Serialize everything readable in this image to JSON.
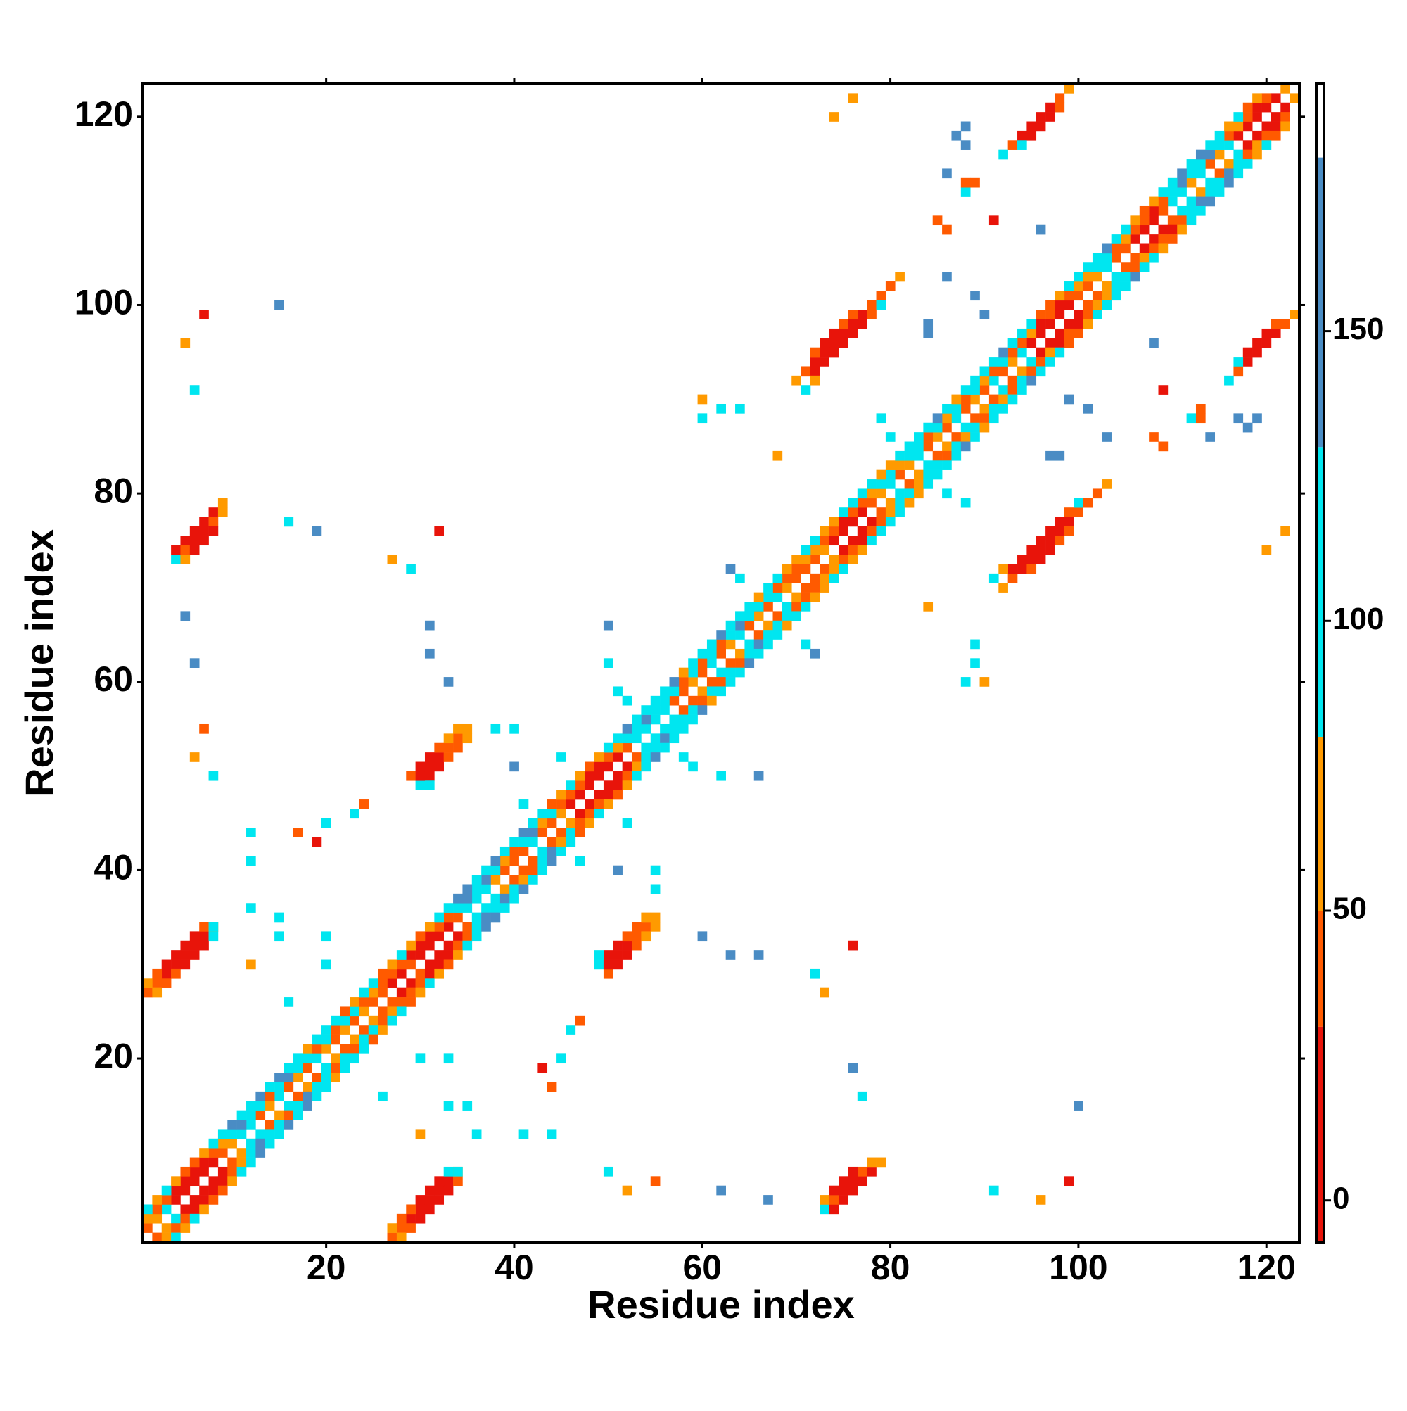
{
  "chart_data": {
    "type": "heatmap",
    "symmetric": true,
    "x_label": "Residue index",
    "y_label": "Residue index",
    "xlim": [
      0.5,
      123.5
    ],
    "ylim": [
      0.5,
      123.5
    ],
    "xticks": [
      20,
      40,
      60,
      80,
      100,
      120
    ],
    "yticks": [
      20,
      40,
      60,
      80,
      100,
      120
    ],
    "clim": [
      -7.2,
      192.7
    ],
    "cticks": [
      0,
      50,
      100,
      150
    ],
    "colorscale": [
      {
        "from": -7.2,
        "to": 30,
        "color": "#e8140a"
      },
      {
        "from": 30,
        "to": 50,
        "color": "#ff5a00"
      },
      {
        "from": 50,
        "to": 80,
        "color": "#ff9a00"
      },
      {
        "from": 80,
        "to": 130,
        "color": "#00e6f0"
      },
      {
        "from": 130,
        "to": 180,
        "color": "#4a8cc4"
      },
      {
        "from": 180,
        "to": 192.7,
        "color": "#ffffff"
      }
    ],
    "bands": [
      {
        "offset": 1,
        "from": 1,
        "values": [
          35,
          65,
          100,
          5,
          5,
          5,
          5,
          5,
          35,
          65,
          100,
          100,
          35,
          65,
          100,
          35,
          65,
          35,
          100,
          65,
          35,
          65,
          35,
          65,
          35,
          35,
          5,
          5,
          35,
          5,
          5,
          5,
          5,
          35,
          100,
          100,
          100,
          65,
          35,
          35,
          35,
          100,
          35,
          35,
          65,
          5,
          5,
          5,
          5,
          5,
          5,
          35,
          100,
          100,
          100,
          100,
          35,
          35,
          65,
          35,
          100,
          35,
          65,
          100,
          35,
          65,
          35,
          100,
          65,
          35,
          35,
          35,
          65,
          5,
          5,
          5,
          5,
          35,
          65,
          100,
          35,
          65,
          100,
          35,
          65,
          35,
          100,
          35,
          65,
          35,
          100,
          35,
          65,
          100,
          5,
          5,
          5,
          5,
          5,
          35,
          35,
          65,
          100,
          35,
          35,
          5,
          5,
          5,
          35,
          100,
          100,
          65,
          100,
          35,
          65,
          100,
          5,
          5,
          5,
          5,
          5,
          65
        ]
      },
      {
        "offset": 2,
        "from": 1,
        "values": [
          65,
          35,
          35,
          5,
          5,
          5,
          5,
          35,
          65,
          100,
          150,
          100,
          100,
          35,
          100,
          150,
          100,
          100,
          35,
          100,
          35,
          100,
          100,
          35,
          65,
          35,
          35,
          35,
          5,
          5,
          5,
          35,
          35,
          100,
          150,
          100,
          150,
          100,
          65,
          35,
          100,
          150,
          65,
          100,
          35,
          35,
          35,
          5,
          5,
          35,
          65,
          100,
          100,
          150,
          100,
          100,
          100,
          35,
          100,
          35,
          100,
          35,
          100,
          150,
          100,
          35,
          100,
          35,
          35,
          35,
          65,
          65,
          35,
          35,
          5,
          35,
          35,
          65,
          100,
          100,
          65,
          100,
          100,
          35,
          100,
          65,
          100,
          35,
          100,
          65,
          35,
          100,
          35,
          35,
          65,
          5,
          35,
          5,
          35,
          65,
          65,
          100,
          100,
          35,
          65,
          35,
          35,
          5,
          35,
          100,
          150,
          100,
          100,
          150,
          100,
          35,
          65,
          35,
          5,
          35
        ]
      },
      {
        "offset": 3,
        "from": 1,
        "values": [
          100,
          65,
          100,
          65,
          35,
          35,
          65,
          100,
          100,
          150,
          100,
          100,
          150,
          100,
          150,
          100,
          100,
          65,
          100,
          100,
          100,
          35,
          65,
          100,
          100,
          35,
          65,
          100,
          65,
          35,
          65,
          100,
          100,
          150,
          150,
          100,
          100,
          150,
          100,
          100,
          150,
          100,
          100,
          35,
          65,
          100,
          65,
          35,
          65,
          100,
          100,
          150,
          100,
          100,
          100,
          100,
          150,
          65,
          100,
          100,
          100,
          150,
          100,
          100,
          100,
          65,
          100,
          100,
          65,
          65,
          100,
          100,
          65,
          65,
          100,
          100,
          100,
          100,
          65,
          65,
          100,
          100,
          100,
          100,
          150,
          100,
          65,
          100,
          100,
          100,
          100,
          150,
          100,
          100,
          100,
          35,
          35,
          65,
          100,
          100,
          100,
          100,
          150,
          100,
          100,
          65,
          35,
          65,
          100,
          100,
          150,
          100,
          150,
          100,
          100,
          65,
          100,
          35,
          65
        ]
      }
    ],
    "cells": [
      [
        27,
        1,
        35
      ],
      [
        28,
        2,
        35
      ],
      [
        29,
        3,
        5
      ],
      [
        30,
        4,
        5
      ],
      [
        31,
        5,
        5
      ],
      [
        32,
        6,
        5
      ],
      [
        33,
        7,
        5
      ],
      [
        28,
        1,
        65
      ],
      [
        29,
        2,
        35
      ],
      [
        30,
        3,
        5
      ],
      [
        31,
        4,
        5
      ],
      [
        32,
        5,
        5
      ],
      [
        33,
        6,
        5
      ],
      [
        34,
        7,
        35
      ],
      [
        27,
        2,
        65
      ],
      [
        28,
        3,
        35
      ],
      [
        29,
        4,
        35
      ],
      [
        30,
        5,
        5
      ],
      [
        31,
        6,
        5
      ],
      [
        32,
        7,
        5
      ],
      [
        33,
        8,
        100
      ],
      [
        34,
        8,
        65
      ],
      [
        73,
        4,
        100
      ],
      [
        74,
        4,
        5
      ],
      [
        75,
        5,
        5
      ],
      [
        76,
        6,
        5
      ],
      [
        77,
        7,
        5
      ],
      [
        78,
        8,
        5
      ],
      [
        74,
        5,
        35
      ],
      [
        75,
        6,
        5
      ],
      [
        76,
        7,
        5
      ],
      [
        77,
        8,
        35
      ],
      [
        78,
        9,
        65
      ],
      [
        73,
        5,
        65
      ],
      [
        74,
        6,
        5
      ],
      [
        75,
        7,
        5
      ],
      [
        76,
        8,
        5
      ],
      [
        79,
        9,
        65
      ],
      [
        49,
        30,
        100
      ],
      [
        50,
        29,
        35
      ],
      [
        50,
        30,
        5
      ],
      [
        51,
        31,
        5
      ],
      [
        52,
        32,
        5
      ],
      [
        53,
        33,
        35
      ],
      [
        54,
        34,
        35
      ],
      [
        55,
        35,
        65
      ],
      [
        50,
        31,
        5
      ],
      [
        51,
        32,
        5
      ],
      [
        52,
        33,
        35
      ],
      [
        53,
        34,
        35
      ],
      [
        54,
        35,
        65
      ],
      [
        49,
        31,
        100
      ],
      [
        51,
        30,
        5
      ],
      [
        52,
        31,
        5
      ],
      [
        53,
        32,
        35
      ],
      [
        54,
        33,
        65
      ],
      [
        55,
        34,
        65
      ],
      [
        92,
        70,
        65
      ],
      [
        93,
        71,
        35
      ],
      [
        94,
        72,
        5
      ],
      [
        95,
        73,
        5
      ],
      [
        96,
        74,
        5
      ],
      [
        97,
        75,
        5
      ],
      [
        98,
        76,
        5
      ],
      [
        99,
        77,
        5
      ],
      [
        100,
        78,
        35
      ],
      [
        101,
        79,
        35
      ],
      [
        102,
        80,
        35
      ],
      [
        103,
        81,
        65
      ],
      [
        93,
        72,
        5
      ],
      [
        94,
        73,
        5
      ],
      [
        95,
        74,
        5
      ],
      [
        96,
        75,
        5
      ],
      [
        97,
        76,
        5
      ],
      [
        98,
        77,
        5
      ],
      [
        99,
        78,
        35
      ],
      [
        100,
        79,
        100
      ],
      [
        91,
        71,
        100
      ],
      [
        92,
        72,
        65
      ],
      [
        95,
        72,
        35
      ],
      [
        96,
        73,
        5
      ],
      [
        97,
        74,
        5
      ],
      [
        98,
        75,
        35
      ],
      [
        99,
        76,
        35
      ],
      [
        117,
        93,
        35
      ],
      [
        118,
        94,
        5
      ],
      [
        119,
        95,
        5
      ],
      [
        120,
        96,
        5
      ],
      [
        121,
        97,
        5
      ],
      [
        122,
        98,
        35
      ],
      [
        123,
        99,
        65
      ],
      [
        118,
        95,
        5
      ],
      [
        119,
        96,
        5
      ],
      [
        120,
        97,
        5
      ],
      [
        121,
        98,
        35
      ],
      [
        117,
        94,
        100
      ],
      [
        116,
        92,
        100
      ],
      [
        36,
        12,
        100
      ],
      [
        41,
        12,
        100
      ],
      [
        44,
        12,
        100
      ],
      [
        30,
        12,
        65
      ],
      [
        34,
        8,
        100
      ],
      [
        26,
        16,
        100
      ],
      [
        30,
        20,
        100
      ],
      [
        33,
        20,
        100
      ],
      [
        43,
        19,
        5
      ],
      [
        44,
        17,
        35
      ],
      [
        45,
        20,
        100
      ],
      [
        46,
        23,
        100
      ],
      [
        47,
        24,
        35
      ],
      [
        33,
        15,
        100
      ],
      [
        35,
        15,
        100
      ],
      [
        50,
        8,
        100
      ],
      [
        52,
        6,
        65
      ],
      [
        55,
        7,
        35
      ],
      [
        62,
        6,
        150
      ],
      [
        67,
        5,
        150
      ],
      [
        77,
        16,
        100
      ],
      [
        76,
        19,
        150
      ],
      [
        100,
        15,
        150
      ],
      [
        91,
        6,
        100
      ],
      [
        96,
        5,
        65
      ],
      [
        99,
        7,
        5
      ],
      [
        76,
        32,
        5
      ],
      [
        72,
        29,
        100
      ],
      [
        73,
        27,
        65
      ],
      [
        60,
        33,
        150
      ],
      [
        63,
        31,
        150
      ],
      [
        66,
        31,
        150
      ],
      [
        52,
        45,
        100
      ],
      [
        55,
        40,
        100
      ],
      [
        51,
        40,
        150
      ],
      [
        47,
        41,
        100
      ],
      [
        55,
        38,
        100
      ],
      [
        62,
        50,
        100
      ],
      [
        66,
        50,
        150
      ],
      [
        58,
        52,
        100
      ],
      [
        59,
        51,
        100
      ],
      [
        71,
        64,
        100
      ],
      [
        72,
        63,
        150
      ],
      [
        68,
        66,
        100
      ],
      [
        84,
        68,
        65
      ],
      [
        89,
        62,
        100
      ],
      [
        90,
        60,
        65
      ],
      [
        88,
        60,
        100
      ],
      [
        89,
        64,
        100
      ],
      [
        99,
        90,
        150
      ],
      [
        101,
        89,
        150
      ],
      [
        103,
        86,
        150
      ],
      [
        108,
        86,
        35
      ],
      [
        109,
        85,
        35
      ],
      [
        112,
        88,
        100
      ],
      [
        117,
        88,
        150
      ],
      [
        119,
        88,
        150
      ],
      [
        122,
        76,
        65
      ],
      [
        120,
        74,
        65
      ],
      [
        109,
        91,
        5
      ],
      [
        88,
        79,
        100
      ],
      [
        86,
        80,
        100
      ],
      [
        97,
        84,
        150
      ],
      [
        98,
        84,
        150
      ],
      [
        108,
        96,
        150
      ],
      [
        113,
        89,
        35
      ],
      [
        118,
        87,
        150
      ],
      [
        114,
        86,
        150
      ],
      [
        113,
        88,
        35
      ]
    ]
  }
}
